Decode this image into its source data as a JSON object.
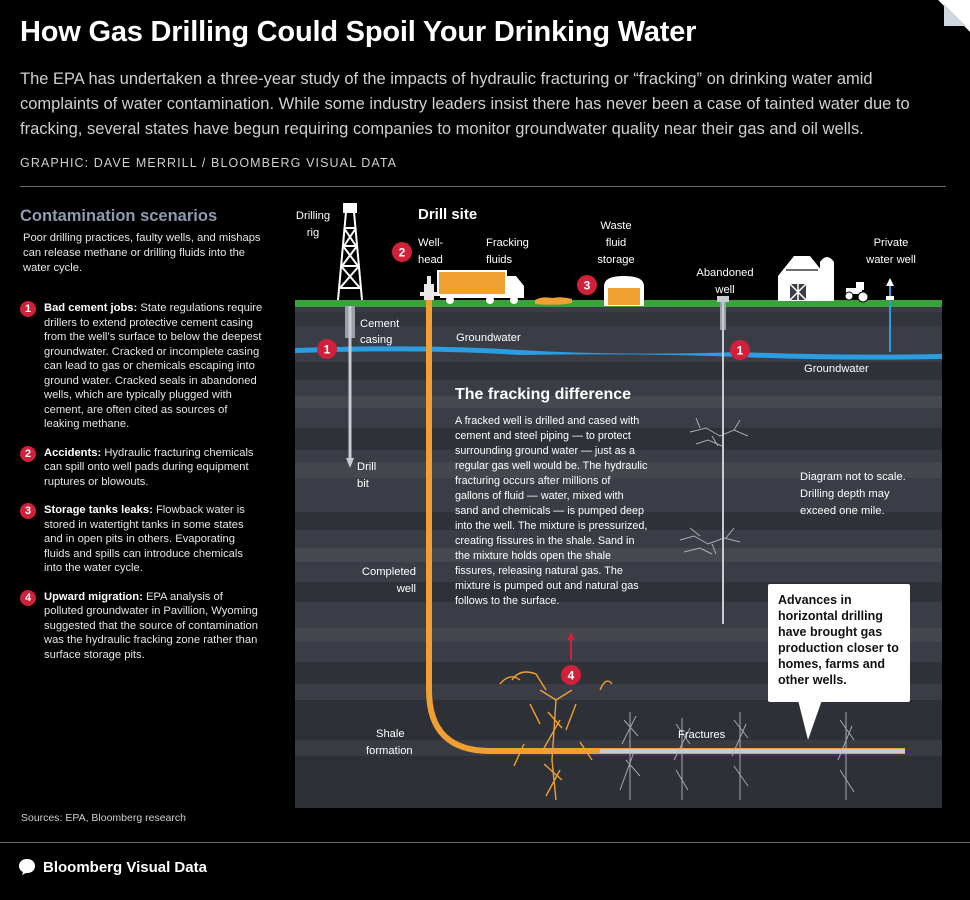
{
  "header": {
    "title": "How Gas Drilling Could Spoil Your Drinking Water",
    "intro": "The EPA has undertaken a three-year study of the impacts of hydraulic fracturing or “fracking” on drinking water amid complaints of water contamination. While some industry leaders insist there has never been a case of tainted water due to fracking, several states have begun requiring companies to monitor groundwater quality near their gas and oil wells.",
    "credit": "GRAPHIC: DAVE MERRILL / BLOOMBERG VISUAL DATA"
  },
  "sidebar": {
    "heading": "Contamination scenarios",
    "lead": "Poor drilling practices, faulty wells, and mishaps can release methane or drilling fluids into the water cycle.",
    "scenarios": [
      {
        "num": "1",
        "title": "Bad cement jobs:",
        "text": "State regulations require drillers to extend protective cement casing from the well’s surface to below the deepest groundwater. Cracked or incomplete casing can lead to gas or chemicals escaping into ground water. Cracked seals in abandoned wells, which are typically plugged with cement, are often cited as sources of leaking methane."
      },
      {
        "num": "2",
        "title": "Accidents:",
        "text": "Hydraulic fracturing chemicals can spill onto well pads during equipment ruptures or blowouts."
      },
      {
        "num": "3",
        "title": "Storage tanks leaks:",
        "text": "Flowback water is stored in watertight tanks in some states and in open pits in others. Evaporating fluids and spills can introduce chemicals into the water cycle."
      },
      {
        "num": "4",
        "title": "Upward migration:",
        "text": "EPA analysis of polluted groundwater in Pavillion, Wyoming suggested that the source of contamination was the hydraulic fracking zone rather than surface storage pits."
      }
    ],
    "sources": "Sources: EPA, Bloomberg research"
  },
  "diagram": {
    "drill_site": "Drill site",
    "drilling_rig": [
      "Drilling",
      "rig"
    ],
    "wellhead": [
      "Well-",
      "head"
    ],
    "fracking_fluids": [
      "Fracking",
      "fluids"
    ],
    "waste_fluid": [
      "Waste",
      "fluid",
      "storage"
    ],
    "abandoned_well": [
      "Abandoned",
      "well"
    ],
    "private_well": [
      "Private",
      "water well"
    ],
    "cement_casing": [
      "Cement",
      "casing"
    ],
    "groundwater_left": "Groundwater",
    "groundwater_right": "Groundwater",
    "drill_bit": [
      "Drill",
      "bit"
    ],
    "completed_well": [
      "Completed",
      "well"
    ],
    "shale_formation": [
      "Shale",
      "formation"
    ],
    "fractures": "Fractures",
    "scale_note": [
      "Diagram not to scale.",
      "Drilling depth may",
      "exceed one mile."
    ],
    "fracking_title": "The fracking difference",
    "fracking_body": [
      "A fracked well is drilled and cased with",
      "cement and steel piping — to protect",
      "surrounding ground water — just as a",
      "regular gas well would be. The hydraulic",
      "fracturing occurs after millions of",
      "gallons of fluid — water, mixed with",
      "sand and chemicals — is pumped deep",
      "into the well. The mixture is pressurized,",
      "creating fissures in the shale. Sand in",
      "the mixture holds open the shale",
      "fissures, releasing natural gas. The",
      "mixture is pumped out and natural gas",
      "follows to the surface."
    ],
    "callout": "Advances in horizontal drilling have brought gas production closer to homes, farms and other wells.",
    "markers": [
      "1",
      "2",
      "3",
      "4"
    ]
  },
  "footer": {
    "brand": "Bloomberg Visual Data"
  },
  "colors": {
    "alert_red": "#d0203a",
    "pipe_orange": "#f0a030",
    "groundwater": "#2a9ee0",
    "grass": "#3aa23a",
    "heading_gray": "#8e9cb0"
  }
}
